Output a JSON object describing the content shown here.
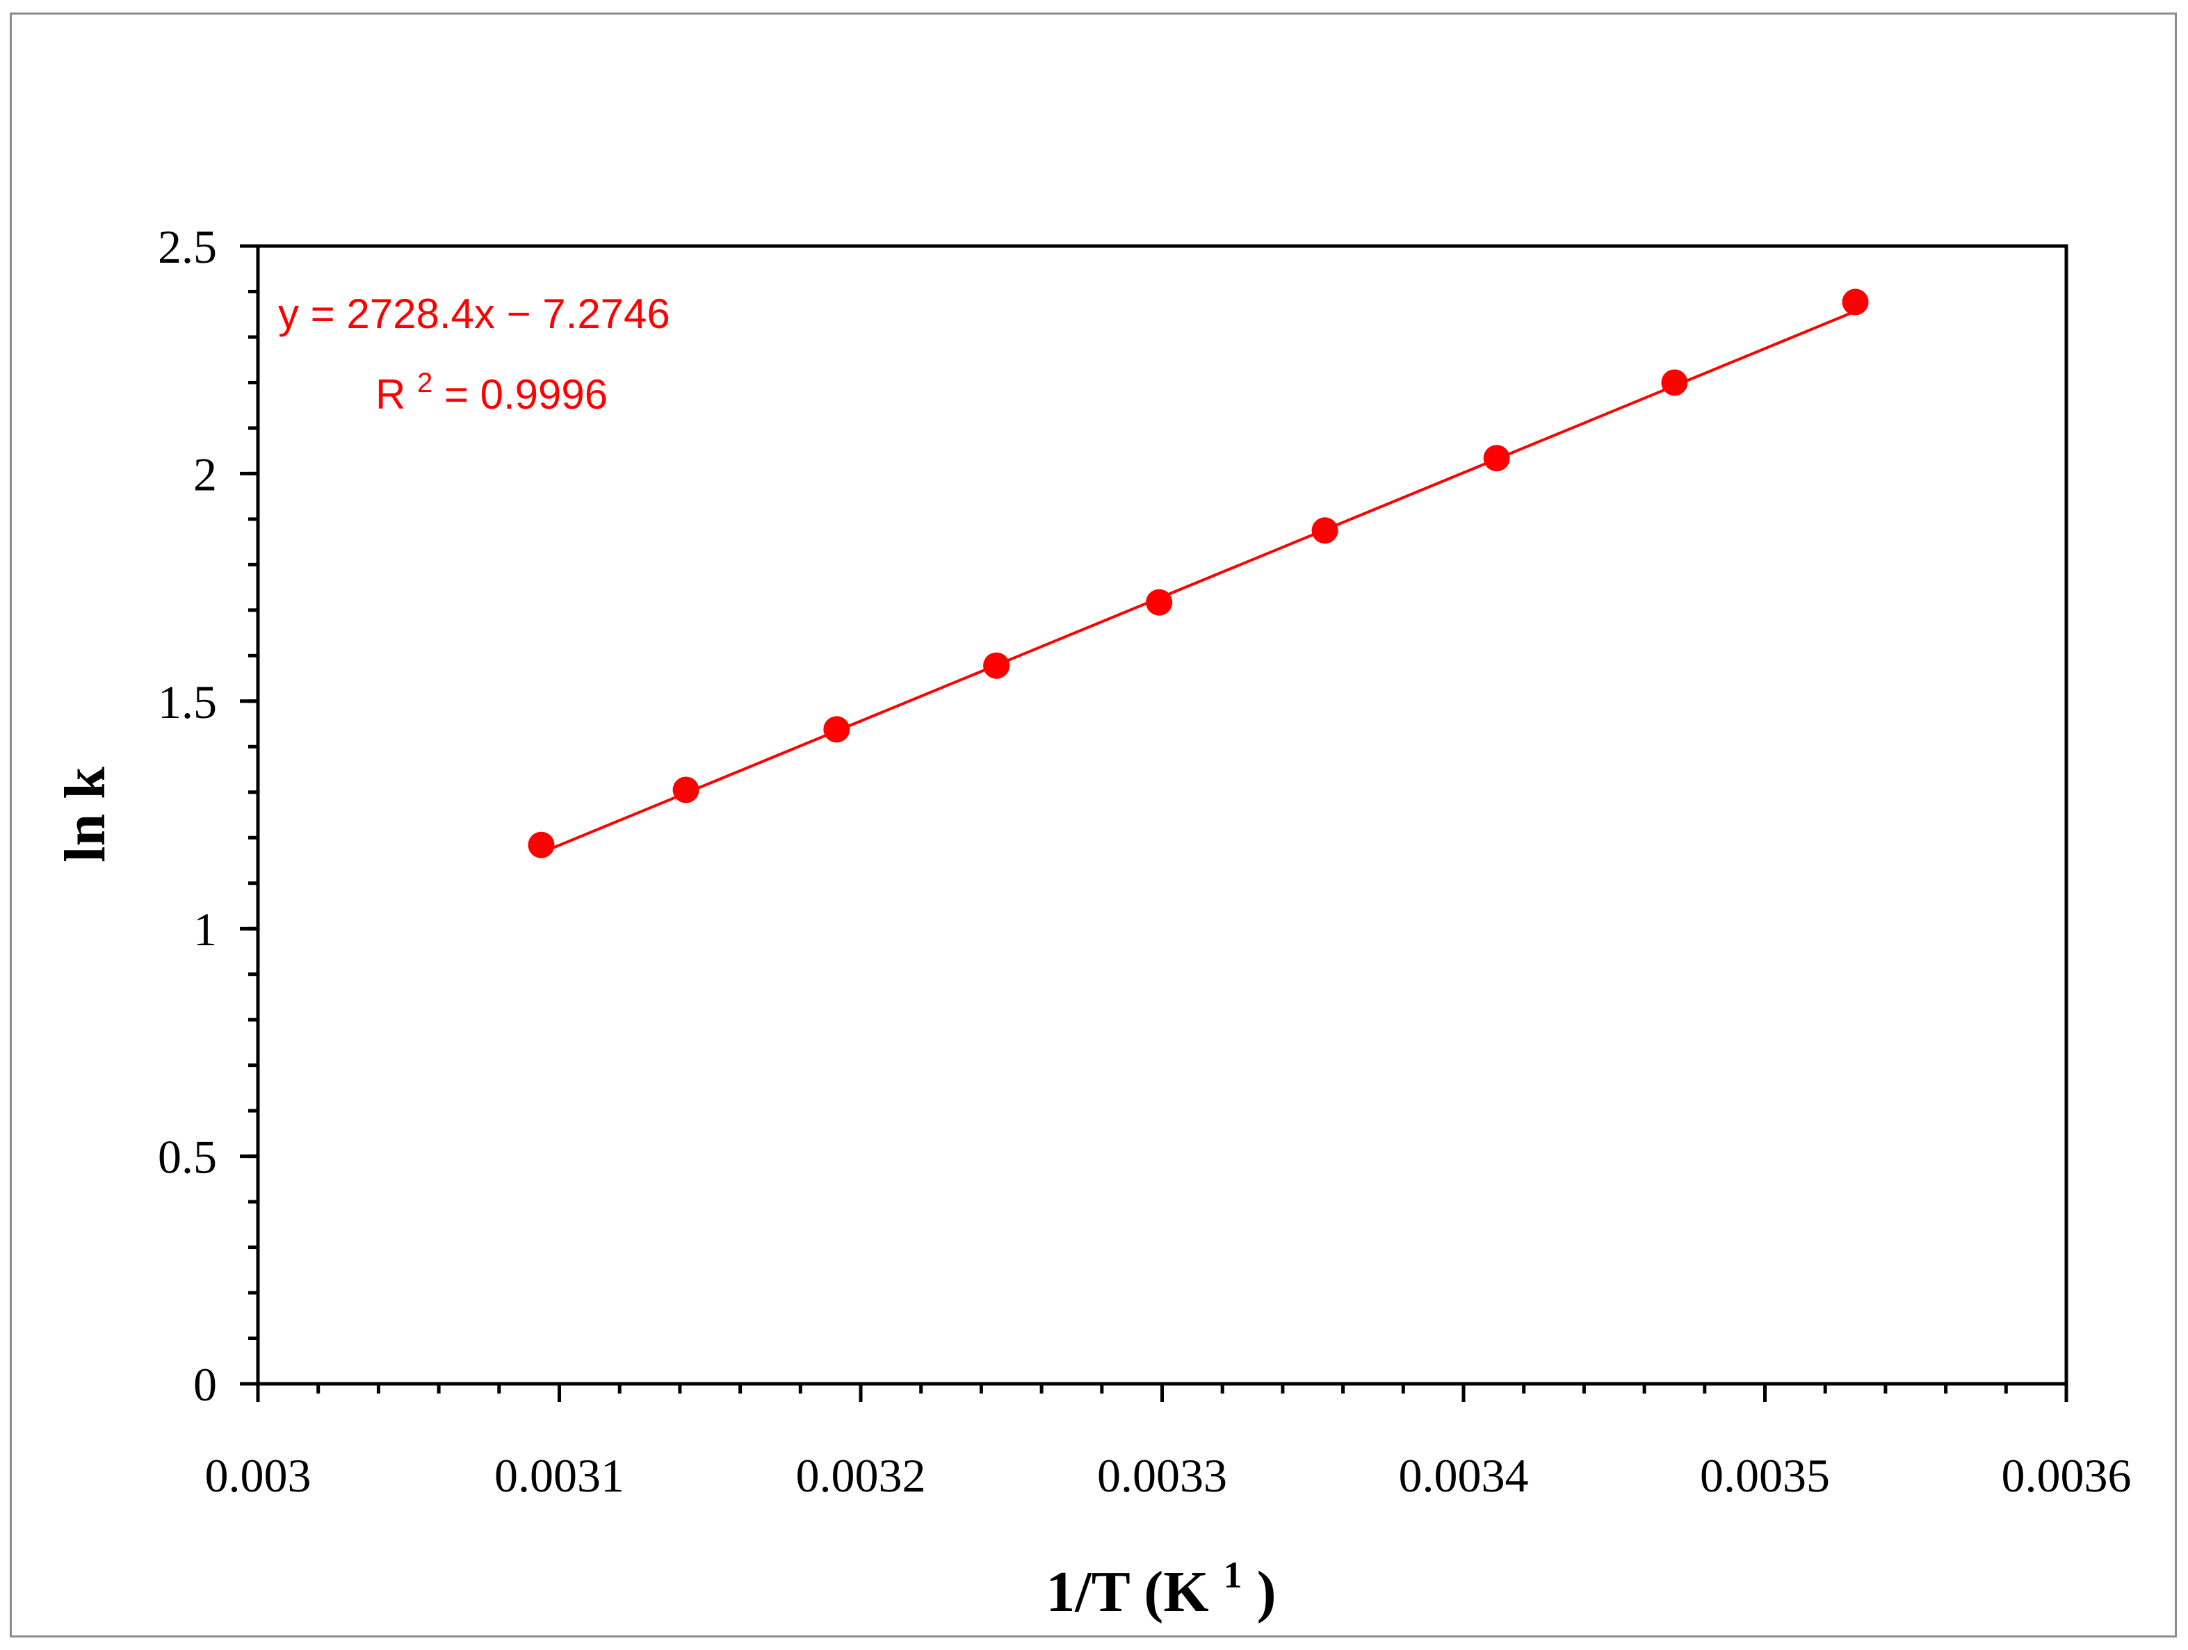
{
  "chart_data": {
    "type": "scatter",
    "title": "",
    "xlabel": "1/T (K",
    "xlabel_sup": "1",
    "xlabel_suffix": ")",
    "ylabel": "ln k",
    "xlim": [
      0.003,
      0.0036
    ],
    "ylim": [
      0,
      2.5
    ],
    "x_ticks": [
      0.003,
      0.0031,
      0.0032,
      0.0033,
      0.0034,
      0.0035,
      0.0036
    ],
    "x_tick_labels": [
      "0.003",
      "0.0031",
      "0.0032",
      "0.0033",
      "0.0034",
      "0.0035",
      "0.0036"
    ],
    "y_ticks": [
      0,
      0.5,
      1,
      1.5,
      2,
      2.5
    ],
    "y_tick_labels": [
      "0",
      "0.5",
      "1",
      "1.5",
      "2",
      "2.5"
    ],
    "x_minor_step": 2e-05,
    "y_minor_step": 0.1,
    "grid": false,
    "legend": "none",
    "series": [
      {
        "color": "#ff0000",
        "marker": "circle",
        "points": [
          {
            "x": 0.003094,
            "y": 1.184
          },
          {
            "x": 0.003142,
            "y": 1.305
          },
          {
            "x": 0.003192,
            "y": 1.438
          },
          {
            "x": 0.003245,
            "y": 1.578
          },
          {
            "x": 0.003299,
            "y": 1.717
          },
          {
            "x": 0.003354,
            "y": 1.875
          },
          {
            "x": 0.003411,
            "y": 2.034
          },
          {
            "x": 0.00347,
            "y": 2.2
          },
          {
            "x": 0.00353,
            "y": 2.377
          }
        ]
      }
    ],
    "trendline": {
      "slope": 2728.4,
      "intercept": -7.2746,
      "color": "#ff0000",
      "equation_label": "y = 2728.4x − 7.2746",
      "r2_prefix": "R",
      "r2_sup": "2",
      "r2_value": " = 0.9996"
    },
    "colors": {
      "axis": "#000000",
      "series": "#ff0000",
      "frame": "#8c8c8c"
    }
  }
}
